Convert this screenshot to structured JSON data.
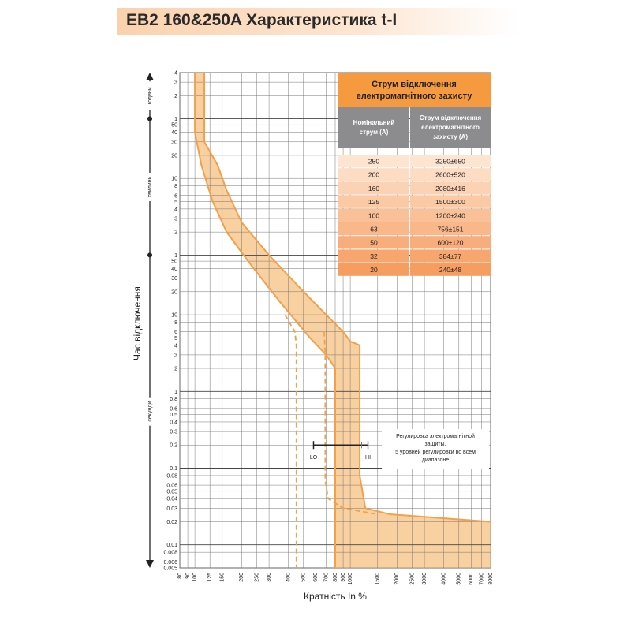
{
  "page_title": "EB2 160&250A Характеристика t-I",
  "chart_data": {
    "type": "line",
    "title": "EB2 160&250A Характеристика t-I",
    "xlabel": "Кратність In %",
    "ylabel": "Час відключення",
    "x_scale": "log",
    "y_scale": "log",
    "xlim": [
      80,
      8000
    ],
    "ylim_seconds": [
      0.005,
      14400
    ],
    "grid": true,
    "x_ticks": [
      "80",
      "90",
      "100",
      "125",
      "150",
      "200",
      "250",
      "300",
      "400",
      "500",
      "600",
      "700",
      "800",
      "900",
      "1000",
      "1500",
      "2000",
      "2500",
      "3000",
      "4000",
      "5000",
      "6000",
      "7000",
      "8000"
    ],
    "y_sections": [
      {
        "label": "години",
        "ticks": [
          "4",
          "3",
          "2",
          "1"
        ]
      },
      {
        "label": "хвилини",
        "ticks": [
          "50",
          "40",
          "30",
          "20",
          "10",
          "8",
          "6",
          "5",
          "4",
          "3",
          "2",
          "1"
        ]
      },
      {
        "label": "секунди",
        "ticks": [
          "50",
          "40",
          "30",
          "20",
          "10",
          "8",
          "6",
          "5",
          "4",
          "3",
          "2",
          "1",
          "0.8",
          "0.6",
          "0.5",
          "0.4",
          "0.3",
          "0.2",
          "0.1",
          "0.08",
          "0.06",
          "0.05",
          "0.04",
          "0.03",
          "0.02",
          "0.01",
          "0.008",
          "0.006",
          "0.005"
        ]
      }
    ],
    "series": [
      {
        "kind": "band-upper",
        "points": [
          [
            115,
            14400
          ],
          [
            115,
            1800
          ],
          [
            140,
            900
          ],
          [
            160,
            420
          ],
          [
            200,
            160
          ],
          [
            300,
            60
          ],
          [
            500,
            20
          ],
          [
            700,
            10
          ],
          [
            900,
            6
          ],
          [
            1000,
            4.5
          ],
          [
            1150,
            4
          ],
          [
            1150,
            0.08
          ],
          [
            1250,
            0.03
          ],
          [
            1800,
            0.025
          ],
          [
            8000,
            0.02
          ]
        ]
      },
      {
        "kind": "band-lower",
        "points": [
          [
            100,
            14400
          ],
          [
            100,
            2400
          ],
          [
            110,
            900
          ],
          [
            130,
            300
          ],
          [
            160,
            120
          ],
          [
            220,
            50
          ],
          [
            350,
            15
          ],
          [
            550,
            5
          ],
          [
            700,
            3
          ],
          [
            800,
            2
          ],
          [
            800,
            0.005
          ]
        ]
      },
      {
        "kind": "magnetic-min",
        "style": "dashed",
        "points": [
          [
            380,
            10
          ],
          [
            440,
            6
          ],
          [
            450,
            4
          ],
          [
            450,
            0.005
          ]
        ]
      },
      {
        "kind": "magnetic-max",
        "style": "dashed",
        "points": [
          [
            680,
            6
          ],
          [
            690,
            3
          ],
          [
            690,
            0.07
          ],
          [
            720,
            0.04
          ],
          [
            900,
            0.03
          ],
          [
            1500,
            0.025
          ]
        ]
      }
    ],
    "adjustment": {
      "from_label": "LO",
      "to_label": "HI",
      "from": 580,
      "to": 1300,
      "time": 0.2
    },
    "annotation": "Регулировка электромагнітной защиты.\n5 уровней регулировки во всем диапазоне",
    "colors": {
      "band": "#f8c88f",
      "line": "#f3a04a",
      "grid": "#777777",
      "table_header": "#f59a3f",
      "table_subheader": "#8c8b8e"
    }
  },
  "table": {
    "title": "Струм відключення електромагнітного захисту",
    "col1_header": "Номінальний струм (А)",
    "col2_header": "Струм відключення електромагнітного захисту (А)",
    "rows": [
      {
        "nominal": "250",
        "trip": "3250±650"
      },
      {
        "nominal": "200",
        "trip": "2600±520"
      },
      {
        "nominal": "160",
        "trip": "2080±416"
      },
      {
        "nominal": "125",
        "trip": "1500±300"
      },
      {
        "nominal": "100",
        "trip": "1200±240"
      },
      {
        "nominal": "63",
        "trip": "756±151"
      },
      {
        "nominal": "50",
        "trip": "600±120"
      },
      {
        "nominal": "32",
        "trip": "384±77"
      },
      {
        "nominal": "20",
        "trip": "240±48"
      }
    ]
  }
}
